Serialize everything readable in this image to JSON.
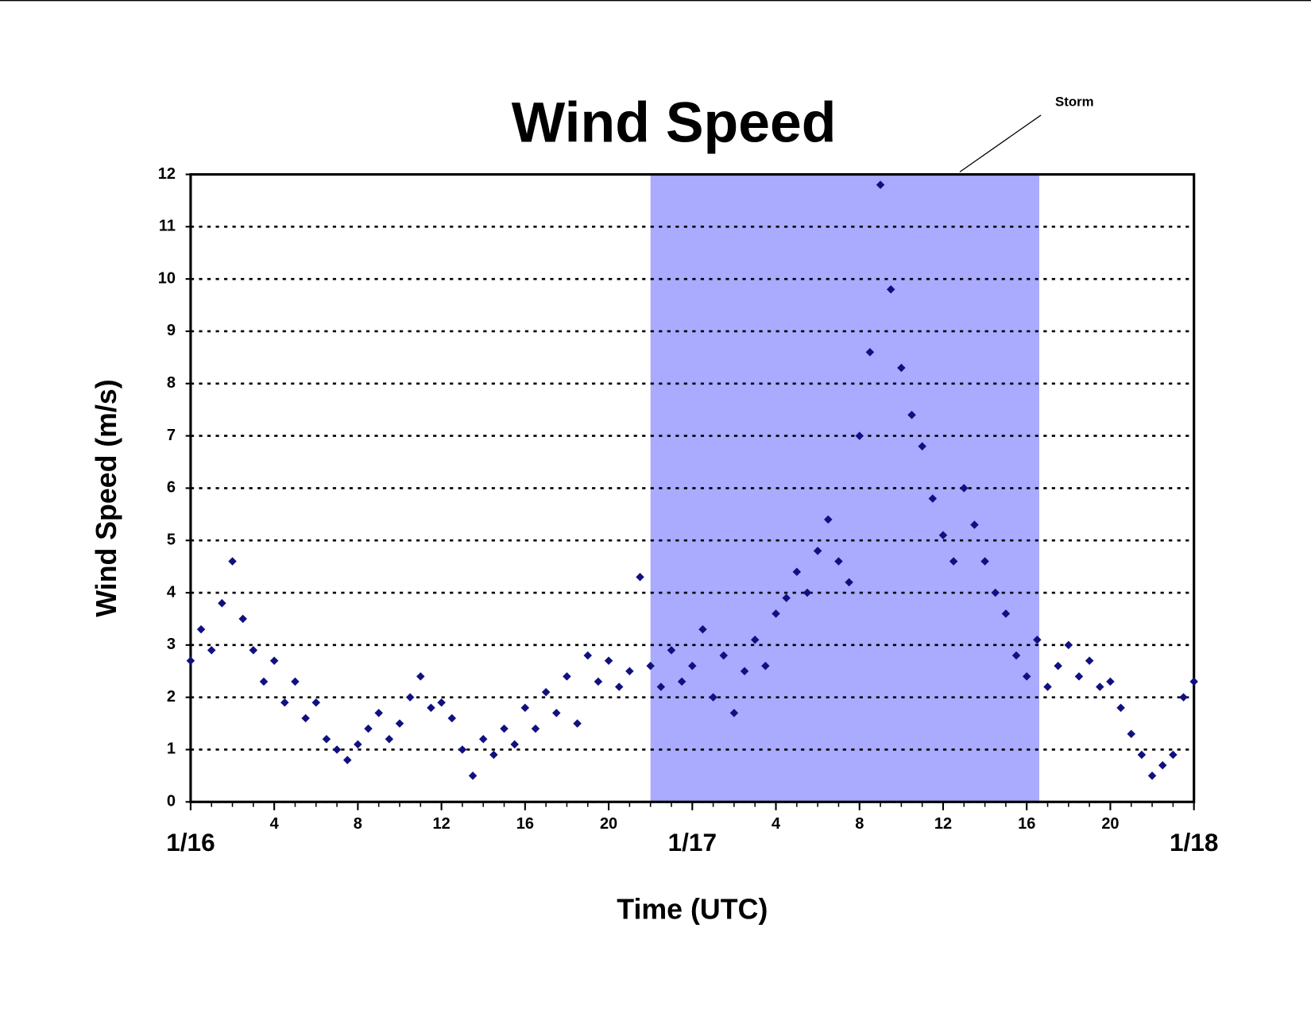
{
  "chart_data": {
    "type": "scatter",
    "title": "Wind Speed",
    "x_label": "Time (UTC)",
    "y_label": "Wind Speed (m/s)",
    "annotation": "Storm",
    "storm_span": [
      22,
      40.6
    ],
    "storm_color": "#aaaaff",
    "grid": true,
    "xlim": [
      0,
      48
    ],
    "ylim": [
      0,
      12
    ],
    "xticks": [
      {
        "value": 0,
        "label": "1/16"
      },
      4,
      8,
      12,
      16,
      20,
      {
        "value": 24,
        "label": "1/17"
      },
      {
        "value": 28,
        "label": "4"
      },
      {
        "value": 32,
        "label": "8"
      },
      {
        "value": 36,
        "label": "12"
      },
      {
        "value": 40,
        "label": "16"
      },
      {
        "value": 44,
        "label": "20"
      },
      {
        "value": 48,
        "label": "1/18"
      }
    ],
    "yticks": [
      0,
      1,
      2,
      3,
      4,
      5,
      6,
      7,
      8,
      9,
      10,
      11,
      12
    ],
    "series": [
      {
        "name": "Wind Speed",
        "color": "#101080",
        "x": [
          0,
          0.5,
          1,
          1.5,
          2,
          2.5,
          3,
          3.5,
          4,
          4.5,
          5,
          5.5,
          6,
          6.5,
          7,
          7.5,
          8,
          8.5,
          9,
          9.5,
          10,
          10.5,
          11,
          11.5,
          12,
          12.5,
          13,
          13.5,
          14,
          14.5,
          15,
          15.5,
          16,
          16.5,
          17,
          17.5,
          18,
          18.5,
          19,
          19.5,
          20,
          20.5,
          21,
          21.5,
          22,
          22.5,
          23,
          23.5,
          24,
          24.5,
          25,
          25.5,
          26,
          26.5,
          27,
          27.5,
          28,
          28.5,
          29,
          29.5,
          30,
          30.5,
          31,
          31.5,
          32,
          32.5,
          33,
          33.5,
          34,
          34.5,
          35,
          35.5,
          36,
          36.5,
          37,
          37.5,
          38,
          38.5,
          39,
          39.5,
          40,
          40.5,
          41,
          41.5,
          42,
          42.5,
          43,
          43.5,
          44,
          44.5,
          45,
          45.5,
          46,
          46.5,
          47,
          47.5,
          48
        ],
        "values": [
          2.7,
          3.3,
          2.9,
          3.8,
          4.6,
          3.5,
          2.9,
          2.3,
          2.7,
          1.9,
          2.3,
          1.6,
          1.9,
          1.2,
          1.0,
          0.8,
          1.1,
          1.4,
          1.7,
          1.2,
          1.5,
          2.0,
          2.4,
          1.8,
          1.9,
          1.6,
          1.0,
          0.5,
          1.2,
          0.9,
          1.4,
          1.1,
          1.8,
          1.4,
          2.1,
          1.7,
          2.4,
          1.5,
          2.8,
          2.3,
          2.7,
          2.2,
          2.5,
          4.3,
          2.6,
          2.2,
          2.9,
          2.3,
          2.6,
          3.3,
          2.0,
          2.8,
          1.7,
          2.5,
          3.1,
          2.6,
          3.6,
          3.9,
          4.4,
          4.0,
          4.8,
          5.4,
          4.6,
          4.2,
          7.0,
          8.6,
          11.8,
          9.8,
          8.3,
          7.4,
          6.8,
          5.8,
          5.1,
          4.6,
          6.0,
          5.3,
          4.6,
          4.0,
          3.6,
          2.8,
          2.4,
          3.1,
          2.2,
          2.6,
          3.0,
          2.4,
          2.7,
          2.2,
          2.3,
          1.8,
          1.3,
          0.9,
          0.5,
          0.7,
          0.9,
          2.0,
          2.3
        ]
      }
    ]
  }
}
